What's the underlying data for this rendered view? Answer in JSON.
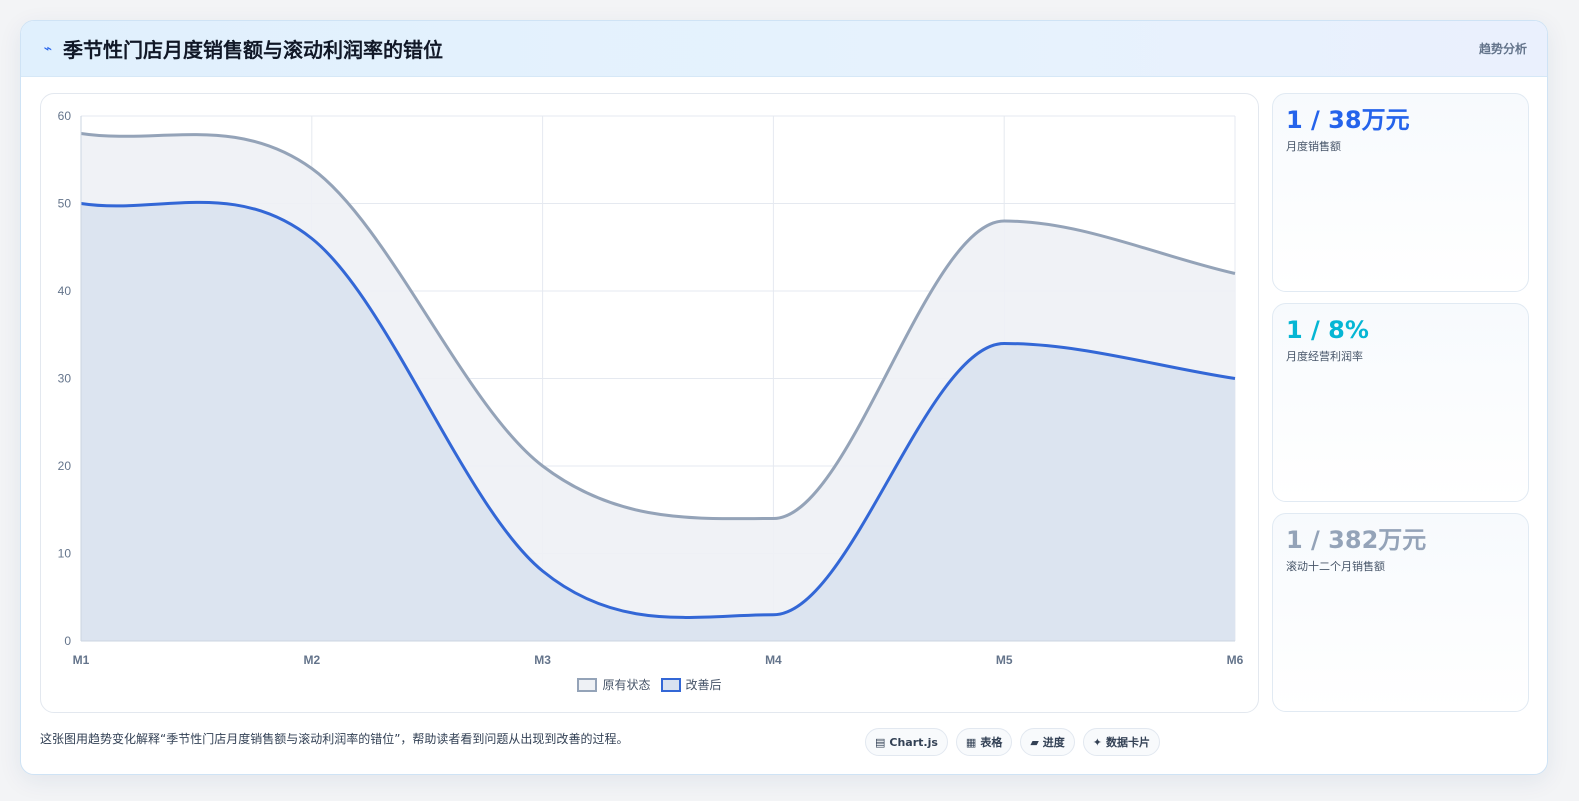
{
  "header": {
    "icon": "bolt-icon",
    "title": "季节性门店月度销售额与滚动利润率的错位",
    "right_label": "趋势分析"
  },
  "chart_data": {
    "type": "area",
    "x": [
      "M1",
      "M2",
      "M3",
      "M4",
      "M5",
      "M6"
    ],
    "ylim": [
      0,
      60
    ],
    "yticks": [
      "0",
      "10",
      "20",
      "30",
      "40",
      "50",
      "60"
    ],
    "grid": true,
    "legend_position": "bottom",
    "series": [
      {
        "name": "原有状态",
        "values": [
          58,
          54,
          20,
          14,
          48,
          42
        ],
        "color": "#94a3b8",
        "fill": "#eef1f5"
      },
      {
        "name": "改善后",
        "values": [
          50,
          46,
          8,
          3,
          34,
          30
        ],
        "color": "#3367d6",
        "fill": "#d9e2f0"
      }
    ]
  },
  "stats": [
    {
      "value": "1 / 38万元",
      "label": "月度销售额",
      "color": "#2563eb"
    },
    {
      "value": "1 / 8%",
      "label": "月度经营利润率",
      "color": "#06b6d4"
    },
    {
      "value": "1 / 382万元",
      "label": "滚动十二个月销售额",
      "color": "#94a3b8"
    }
  ],
  "footer": {
    "description": "这张图用趋势变化解释“季节性门店月度销售额与滚动利润率的错位”，帮助读者看到问题从出现到改善的过程。",
    "tags": [
      {
        "icon": "▤",
        "label": "Chart.js"
      },
      {
        "icon": "▦",
        "label": "表格"
      },
      {
        "icon": "▰",
        "label": "进度"
      },
      {
        "icon": "✦",
        "label": "数据卡片"
      }
    ]
  }
}
